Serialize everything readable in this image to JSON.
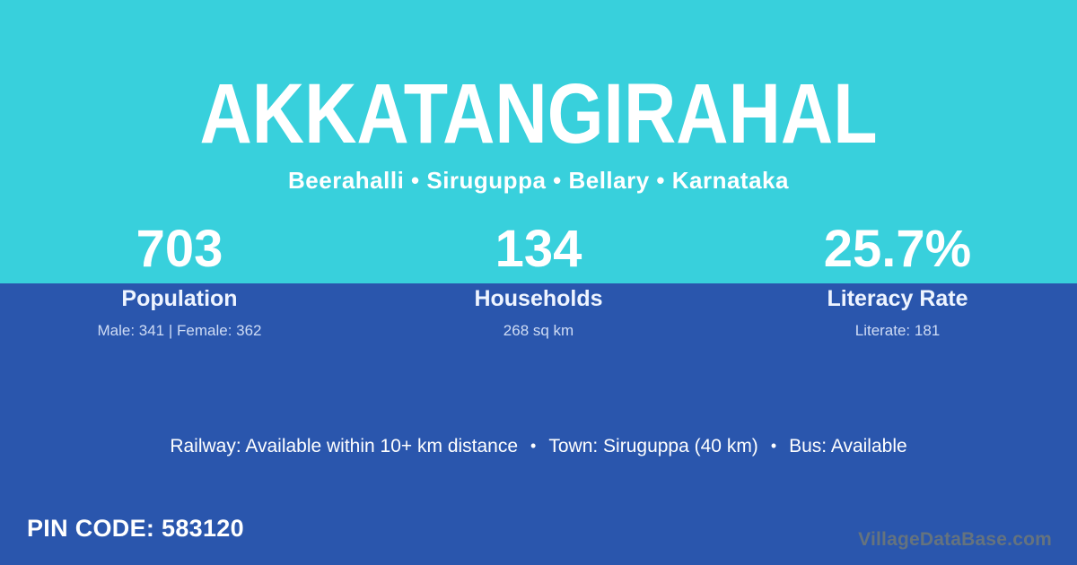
{
  "theme": {
    "top_background": "#38d0dc",
    "bottom_background": "#2a56ad",
    "text_primary": "#ffffff",
    "text_label": "#eef4ff",
    "text_secondary": "#cfdcf5",
    "watermark_color": "#6b767b"
  },
  "header": {
    "village_name": "AKKATANGIRAHAL",
    "breadcrumb": "Beerahalli • Siruguppa • Bellary • Karnataka"
  },
  "stats": [
    {
      "value": "703",
      "label": "Population",
      "detail": "Male: 341 | Female: 362"
    },
    {
      "value": "134",
      "label": "Households",
      "detail": "268 sq km"
    },
    {
      "value": "25.7%",
      "label": "Literacy Rate",
      "detail": "Literate: 181"
    }
  ],
  "transport": {
    "railway": "Railway: Available within 10+ km distance",
    "town": "Town: Siruguppa (40 km)",
    "bus": "Bus: Available",
    "separator": "•"
  },
  "footer": {
    "pin_code": "PIN CODE: 583120",
    "watermark": "VillageDataBase.com"
  }
}
